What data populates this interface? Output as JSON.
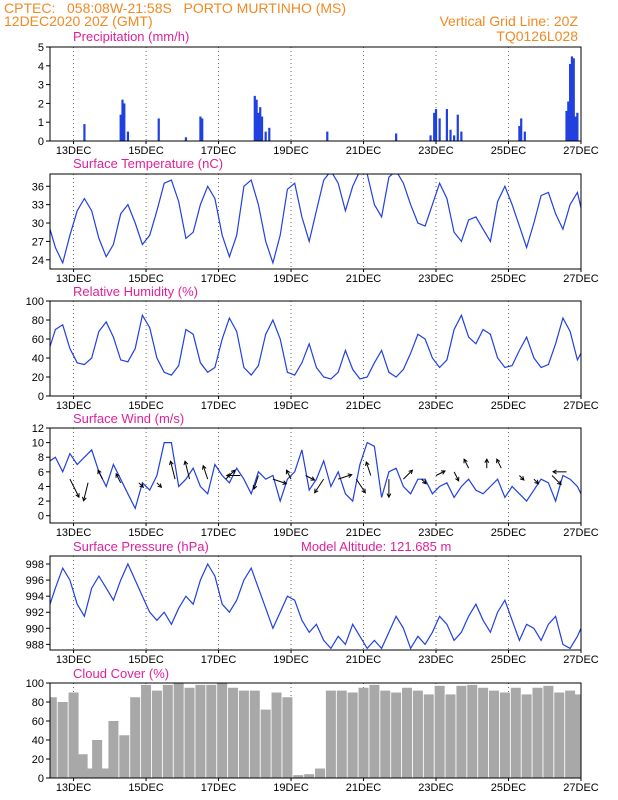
{
  "header": {
    "line1": "CPTEC:   058:08W-21:58S   PORTO MURTINHO (MS)",
    "line2": "12DEC2020 20Z (GMT)",
    "grid_note": "Vertical Grid Line: 20Z",
    "code": "TQ0126L028"
  },
  "colors": {
    "header": "#f08a24",
    "title": "#e0209a",
    "series": "#2040e0",
    "cloud": "#a8a8a8",
    "frame": "#000000"
  },
  "x_axis": {
    "date_labels": [
      "13DEC",
      "15DEC",
      "17DEC",
      "19DEC",
      "21DEC",
      "23DEC",
      "25DEC",
      "27DEC"
    ],
    "date_positions": [
      13,
      15,
      17,
      19,
      21,
      23,
      25,
      27
    ],
    "range": [
      12.35,
      27.0
    ],
    "grid": "dotted"
  },
  "chart_data": [
    {
      "type": "bar",
      "title": "Precipitation (mm/h)",
      "ylim": [
        0,
        5
      ],
      "yticks": [
        "0",
        "1",
        "2",
        "3",
        "4",
        "5"
      ],
      "x": [
        13.3,
        14.3,
        14.35,
        14.4,
        14.5,
        15.35,
        16.1,
        16.5,
        16.55,
        18.0,
        18.05,
        18.1,
        18.15,
        18.2,
        18.3,
        18.4,
        20.0,
        21.9,
        22.85,
        22.95,
        23.0,
        23.1,
        23.3,
        23.4,
        23.5,
        23.6,
        23.7,
        25.3,
        25.35,
        25.45,
        26.6,
        26.65,
        26.7,
        26.75,
        26.8,
        26.85,
        26.9
      ],
      "values": [
        0.9,
        1.4,
        2.2,
        2.0,
        0.5,
        1.2,
        0.2,
        1.3,
        1.2,
        2.4,
        2.2,
        1.5,
        1.8,
        1.3,
        0.5,
        0.7,
        0.5,
        0.4,
        0.3,
        1.5,
        1.7,
        1.2,
        1.7,
        0.6,
        0.3,
        1.4,
        0.5,
        0.8,
        1.2,
        0.5,
        1.6,
        2.1,
        4.1,
        4.5,
        4.4,
        1.3,
        1.5
      ]
    },
    {
      "type": "line",
      "title": "Surface Temperature (nC)",
      "ylim": [
        22.5,
        38.0
      ],
      "yticks": [
        "24",
        "27",
        "30",
        "33",
        "36"
      ],
      "x": [
        12.35,
        12.5,
        12.7,
        12.9,
        13.1,
        13.3,
        13.5,
        13.7,
        13.9,
        14.1,
        14.3,
        14.5,
        14.7,
        14.9,
        15.1,
        15.3,
        15.5,
        15.7,
        15.9,
        16.1,
        16.3,
        16.5,
        16.7,
        16.9,
        17.1,
        17.3,
        17.5,
        17.7,
        17.9,
        18.1,
        18.3,
        18.5,
        18.7,
        18.9,
        19.1,
        19.3,
        19.5,
        19.7,
        19.9,
        20.1,
        20.3,
        20.5,
        20.7,
        20.9,
        21.1,
        21.3,
        21.5,
        21.7,
        21.9,
        22.1,
        22.3,
        22.5,
        22.7,
        22.9,
        23.1,
        23.3,
        23.5,
        23.7,
        23.9,
        24.1,
        24.3,
        24.5,
        24.7,
        24.9,
        25.1,
        25.3,
        25.5,
        25.7,
        25.9,
        26.1,
        26.3,
        26.5,
        26.7,
        26.9,
        27.0
      ],
      "series": [
        {
          "values": [
            29.0,
            26.0,
            23.5,
            28.0,
            32.0,
            34.0,
            32.0,
            27.5,
            24.5,
            26.5,
            31.5,
            33.0,
            30.0,
            26.5,
            28.0,
            32.0,
            36.5,
            37.0,
            33.5,
            27.5,
            28.5,
            33.0,
            36.0,
            34.0,
            28.0,
            24.5,
            28.0,
            36.0,
            37.0,
            33.0,
            27.0,
            23.5,
            28.0,
            35.5,
            36.5,
            31.0,
            27.0,
            32.0,
            37.0,
            38.5,
            36.5,
            32.0,
            36.0,
            38.5,
            38.0,
            33.0,
            31.0,
            37.5,
            38.5,
            36.5,
            33.0,
            30.0,
            29.5,
            33.0,
            36.5,
            34.0,
            28.5,
            27.0,
            30.5,
            31.0,
            29.0,
            27.0,
            33.5,
            36.0,
            33.0,
            29.5,
            26.0,
            30.0,
            34.5,
            35.0,
            31.5,
            29.0,
            33.0,
            35.0,
            32.5
          ]
        }
      ]
    },
    {
      "type": "line",
      "title": "Relative Humidity (%)",
      "ylim": [
        0,
        100
      ],
      "yticks": [
        "0",
        "20",
        "40",
        "60",
        "80",
        "100"
      ],
      "x": [
        12.35,
        12.5,
        12.7,
        12.9,
        13.1,
        13.3,
        13.5,
        13.7,
        13.9,
        14.1,
        14.3,
        14.5,
        14.7,
        14.9,
        15.1,
        15.3,
        15.5,
        15.7,
        15.9,
        16.1,
        16.3,
        16.5,
        16.7,
        16.9,
        17.1,
        17.3,
        17.5,
        17.7,
        17.9,
        18.1,
        18.3,
        18.5,
        18.7,
        18.9,
        19.1,
        19.3,
        19.5,
        19.7,
        19.9,
        20.1,
        20.3,
        20.5,
        20.7,
        20.9,
        21.1,
        21.3,
        21.5,
        21.7,
        21.9,
        22.1,
        22.3,
        22.5,
        22.7,
        22.9,
        23.1,
        23.3,
        23.5,
        23.7,
        23.9,
        24.1,
        24.3,
        24.5,
        24.7,
        24.9,
        25.1,
        25.3,
        25.5,
        25.7,
        25.9,
        26.1,
        26.3,
        26.5,
        26.7,
        26.9,
        27.0
      ],
      "series": [
        {
          "values": [
            52.0,
            70.0,
            75.0,
            50.0,
            35.0,
            33.0,
            40.0,
            68.0,
            78.0,
            62.0,
            38.0,
            36.0,
            50.0,
            85.0,
            72.0,
            40.0,
            25.0,
            22.0,
            32.0,
            70.0,
            65.0,
            35.0,
            25.0,
            30.0,
            60.0,
            82.0,
            68.0,
            30.0,
            22.0,
            32.0,
            65.0,
            80.0,
            60.0,
            25.0,
            22.0,
            35.0,
            55.0,
            30.0,
            20.0,
            18.0,
            25.0,
            48.0,
            28.0,
            18.0,
            20.0,
            35.0,
            48.0,
            25.0,
            20.0,
            28.0,
            45.0,
            65.0,
            60.0,
            40.0,
            30.0,
            38.0,
            70.0,
            85.0,
            62.0,
            55.0,
            70.0,
            65.0,
            40.0,
            30.0,
            32.0,
            48.0,
            62.0,
            40.0,
            30.0,
            33.0,
            55.0,
            82.0,
            68.0,
            38.0,
            45.0
          ]
        }
      ]
    },
    {
      "type": "line",
      "title": "Surface Wind (m/s)",
      "ylim": [
        -1,
        12
      ],
      "yticks": [
        "0",
        "2",
        "4",
        "6",
        "8",
        "10",
        "12"
      ],
      "x": [
        12.35,
        12.5,
        12.7,
        12.9,
        13.1,
        13.3,
        13.5,
        13.7,
        13.9,
        14.1,
        14.3,
        14.5,
        14.7,
        14.9,
        15.1,
        15.3,
        15.5,
        15.7,
        15.9,
        16.1,
        16.3,
        16.5,
        16.7,
        16.9,
        17.1,
        17.3,
        17.5,
        17.7,
        17.9,
        18.1,
        18.3,
        18.5,
        18.7,
        18.9,
        19.1,
        19.3,
        19.5,
        19.7,
        19.9,
        20.1,
        20.3,
        20.5,
        20.7,
        20.9,
        21.1,
        21.3,
        21.5,
        21.7,
        21.9,
        22.1,
        22.3,
        22.5,
        22.7,
        22.9,
        23.1,
        23.3,
        23.5,
        23.7,
        23.9,
        24.1,
        24.3,
        24.5,
        24.7,
        24.9,
        25.1,
        25.3,
        25.5,
        25.7,
        25.9,
        26.1,
        26.3,
        26.5,
        26.7,
        26.9,
        27.0
      ],
      "series": [
        {
          "values": [
            7.5,
            8.0,
            6.0,
            8.5,
            7.0,
            8.0,
            9.0,
            6.0,
            4.0,
            7.0,
            5.0,
            3.0,
            1.0,
            4.5,
            3.5,
            5.5,
            10.0,
            10.0,
            4.0,
            5.0,
            6.5,
            4.0,
            3.0,
            7.0,
            5.5,
            4.5,
            6.5,
            5.0,
            3.0,
            6.0,
            5.0,
            5.5,
            2.0,
            5.0,
            6.0,
            9.0,
            3.5,
            5.0,
            7.5,
            4.0,
            6.0,
            3.0,
            2.0,
            7.0,
            10.0,
            9.5,
            2.5,
            6.0,
            6.5,
            4.0,
            3.0,
            5.0,
            5.0,
            3.0,
            4.0,
            4.5,
            2.5,
            4.0,
            5.0,
            3.5,
            3.0,
            4.0,
            5.0,
            2.5,
            4.0,
            3.0,
            2.0,
            3.5,
            5.0,
            4.5,
            2.0,
            5.5,
            5.0,
            4.0,
            3.0
          ]
        }
      ],
      "arrow_x": [
        12.9,
        13.4,
        13.8,
        14.3,
        14.8,
        15.3,
        15.8,
        16.2,
        16.7,
        17.2,
        17.6,
        18.1,
        18.5,
        19.0,
        19.4,
        19.9,
        20.3,
        20.8,
        21.2,
        21.7,
        22.1,
        22.6,
        23.0,
        23.5,
        23.9,
        24.4,
        24.8,
        25.3,
        25.7,
        26.2,
        26.6
      ],
      "arrow_y": [
        5.0,
        4.5,
        5.0,
        4.5,
        4.5,
        4.5,
        5.0,
        5.0,
        5.0,
        5.0,
        5.5,
        5.5,
        5.0,
        5.0,
        5.5,
        5.0,
        5.0,
        5.0,
        5.5,
        5.0,
        5.0,
        5.0,
        5.5,
        6.0,
        6.5,
        6.5,
        6.5,
        5.5,
        5.0,
        5.5,
        6.0
      ],
      "arrow_u": [
        2,
        -1,
        -1,
        -1,
        1,
        1,
        -1,
        -1,
        -1,
        2,
        -3,
        -1,
        3,
        -1,
        2,
        -2,
        3,
        2,
        -1,
        0,
        2,
        1,
        2,
        1,
        -1,
        0,
        -1,
        1,
        1,
        2,
        -3
      ],
      "arrow_v": [
        -4,
        -4,
        2,
        2,
        -1,
        -1,
        4,
        4,
        3,
        2,
        0,
        -3,
        -1,
        2,
        -1,
        -3,
        1,
        -3,
        3,
        -4,
        2,
        -1,
        1,
        -2,
        2,
        2,
        2,
        -1,
        -1,
        -2,
        0
      ]
    },
    {
      "type": "line",
      "title": "Surface Pressure (hPa)",
      "annotation": "Model Altitude: 121.685 m",
      "ylim": [
        987.3,
        999.0
      ],
      "yticks": [
        "988",
        "990",
        "992",
        "994",
        "996",
        "998"
      ],
      "x": [
        12.35,
        12.5,
        12.7,
        12.9,
        13.1,
        13.3,
        13.5,
        13.7,
        13.9,
        14.1,
        14.3,
        14.5,
        14.7,
        14.9,
        15.1,
        15.3,
        15.5,
        15.7,
        15.9,
        16.1,
        16.3,
        16.5,
        16.7,
        16.9,
        17.1,
        17.3,
        17.5,
        17.7,
        17.9,
        18.1,
        18.3,
        18.5,
        18.7,
        18.9,
        19.1,
        19.3,
        19.5,
        19.7,
        19.9,
        20.1,
        20.3,
        20.5,
        20.7,
        20.9,
        21.1,
        21.3,
        21.5,
        21.7,
        21.9,
        22.1,
        22.3,
        22.5,
        22.7,
        22.9,
        23.1,
        23.3,
        23.5,
        23.7,
        23.9,
        24.1,
        24.3,
        24.5,
        24.7,
        24.9,
        25.1,
        25.3,
        25.5,
        25.7,
        25.9,
        26.1,
        26.3,
        26.5,
        26.7,
        26.9,
        27.0
      ],
      "series": [
        {
          "values": [
            993.0,
            995.0,
            997.5,
            996.0,
            993.0,
            991.5,
            995.0,
            996.5,
            995.0,
            993.5,
            996.0,
            998.0,
            996.0,
            994.0,
            992.0,
            991.0,
            992.0,
            990.5,
            992.5,
            994.0,
            993.0,
            996.0,
            998.0,
            996.5,
            993.0,
            992.0,
            993.5,
            996.0,
            997.5,
            995.0,
            992.5,
            990.0,
            992.0,
            994.0,
            993.5,
            991.0,
            989.5,
            990.5,
            988.5,
            987.5,
            989.0,
            988.0,
            990.5,
            989.0,
            987.5,
            988.5,
            987.5,
            989.5,
            991.5,
            990.0,
            987.5,
            989.0,
            988.0,
            989.5,
            991.5,
            990.5,
            988.5,
            989.5,
            991.5,
            993.0,
            991.0,
            989.5,
            992.0,
            993.5,
            991.0,
            988.5,
            990.5,
            990.0,
            988.5,
            990.5,
            991.5,
            988.0,
            987.5,
            989.0,
            990.0
          ]
        }
      ]
    },
    {
      "type": "bar",
      "title": "Cloud Cover (%)",
      "ylim": [
        0,
        100
      ],
      "yticks": [
        "0",
        "20",
        "40",
        "60",
        "80",
        "100"
      ],
      "x": [
        12.4,
        12.7,
        13.0,
        13.25,
        13.45,
        13.65,
        13.85,
        14.1,
        14.4,
        14.7,
        15.0,
        15.3,
        15.6,
        15.9,
        16.2,
        16.5,
        16.8,
        17.1,
        17.4,
        17.7,
        18.0,
        18.3,
        18.6,
        18.9,
        19.2,
        19.5,
        19.8,
        20.1,
        20.4,
        20.7,
        21.0,
        21.3,
        21.6,
        21.9,
        22.2,
        22.5,
        22.8,
        23.1,
        23.4,
        23.7,
        24.0,
        24.3,
        24.6,
        24.9,
        25.2,
        25.5,
        25.8,
        26.1,
        26.4,
        26.7,
        26.9
      ],
      "values": [
        85,
        80,
        90,
        25,
        10,
        40,
        10,
        60,
        45,
        85,
        98,
        92,
        98,
        100,
        95,
        98,
        98,
        100,
        95,
        92,
        92,
        72,
        90,
        85,
        3,
        4,
        10,
        92,
        92,
        90,
        95,
        98,
        92,
        90,
        95,
        92,
        88,
        97,
        88,
        97,
        98,
        95,
        92,
        90,
        95,
        88,
        95,
        97,
        90,
        92,
        88
      ]
    }
  ]
}
